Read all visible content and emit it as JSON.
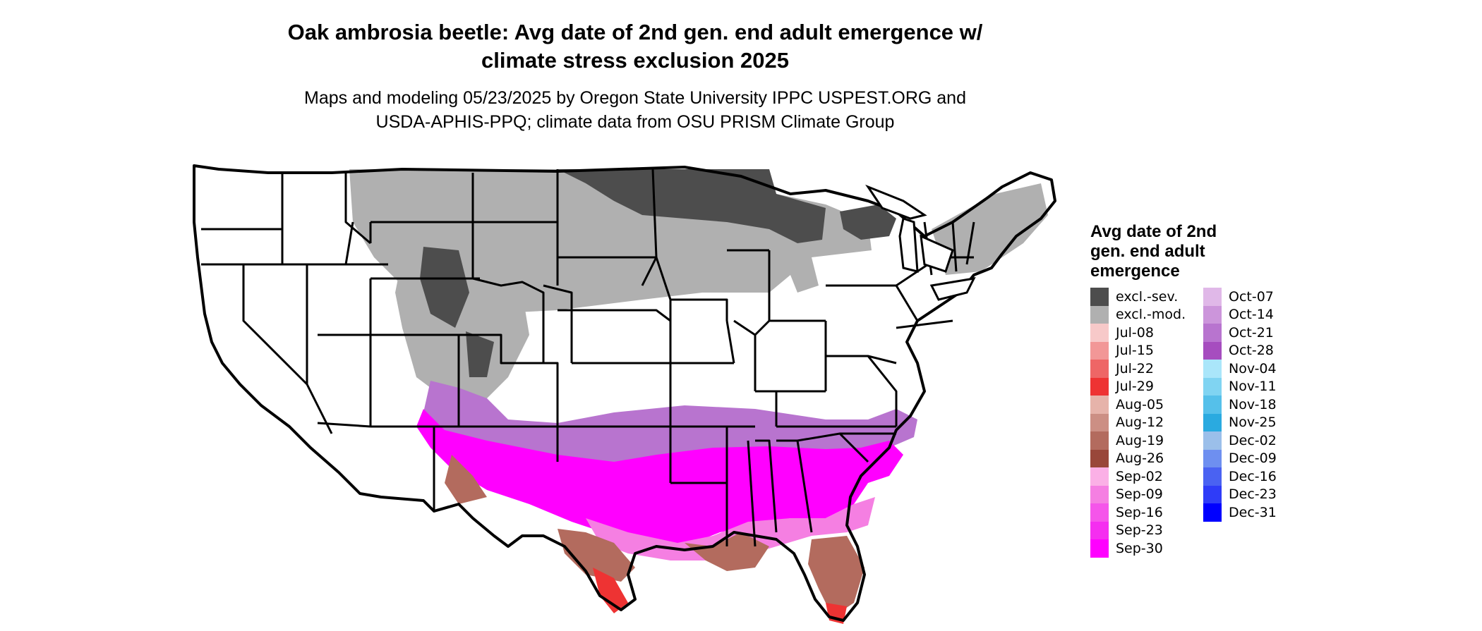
{
  "title_line1": "Oak ambrosia beetle: Avg date of 2nd gen. end adult emergence w/",
  "title_line2": "climate stress exclusion 2025",
  "subtitle_line1": "Maps and modeling 05/23/2025 by Oregon State University IPPC USPEST.ORG and",
  "subtitle_line2": "USDA-APHIS-PPQ; climate data from OSU PRISM Climate Group",
  "legend": {
    "title_line1": "Avg date of 2nd",
    "title_line2": "gen. end adult",
    "title_line3": "emergence",
    "col1": [
      {
        "label": "excl.-sev.",
        "color": "#4d4d4d"
      },
      {
        "label": "excl.-mod.",
        "color": "#b0b0b0"
      },
      {
        "label": "Jul-08",
        "color": "#f7c9c9"
      },
      {
        "label": "Jul-15",
        "color": "#f29797"
      },
      {
        "label": "Jul-22",
        "color": "#ee6666"
      },
      {
        "label": "Jul-29",
        "color": "#ee3333"
      },
      {
        "label": "Aug-05",
        "color": "#e6b3aa"
      },
      {
        "label": "Aug-12",
        "color": "#cc8f84"
      },
      {
        "label": "Aug-19",
        "color": "#b36b5e"
      },
      {
        "label": "Aug-26",
        "color": "#99473a"
      },
      {
        "label": "Sep-02",
        "color": "#fbb0e6"
      },
      {
        "label": "Sep-09",
        "color": "#f57fe2"
      },
      {
        "label": "Sep-16",
        "color": "#f555ea"
      },
      {
        "label": "Sep-23",
        "color": "#f52ef0"
      },
      {
        "label": "Sep-30",
        "color": "#ff00ff"
      }
    ],
    "col2": [
      {
        "label": "Oct-07",
        "color": "#e0b8e8"
      },
      {
        "label": "Oct-14",
        "color": "#cc95db"
      },
      {
        "label": "Oct-21",
        "color": "#b874cf"
      },
      {
        "label": "Oct-28",
        "color": "#a64dbf"
      },
      {
        "label": "Nov-04",
        "color": "#aae6fa"
      },
      {
        "label": "Nov-11",
        "color": "#80d4f2"
      },
      {
        "label": "Nov-18",
        "color": "#55c0ea"
      },
      {
        "label": "Nov-25",
        "color": "#2aaae0"
      },
      {
        "label": "Dec-02",
        "color": "#9bbfea"
      },
      {
        "label": "Dec-09",
        "color": "#6e8ff0"
      },
      {
        "label": "Dec-16",
        "color": "#4a62f2"
      },
      {
        "label": "Dec-23",
        "color": "#2f3cf8"
      },
      {
        "label": "Dec-31",
        "color": "#0000ff"
      }
    ]
  }
}
